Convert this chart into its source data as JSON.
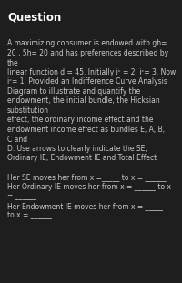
{
  "title": "Question",
  "background_color": "#1e1e1e",
  "text_color": "#c8c8c8",
  "title_color": "#ffffff",
  "title_fontsize": 8.5,
  "body_fontsize": 5.5,
  "figwidth": 2.0,
  "figheight": 3.11,
  "dpi": 100,
  "body_lines": [
    "",
    "A maximizing consumer is endowed with gh=",
    "20 , 5h= 20 and has preferences described by",
    "the",
    "linear function d = 45. Initially iᶜ = 2, iᶜ= 3. Now",
    "iᶜ= 1. Provided an Indifference Curve Analysis",
    "Diagram to illustrate and quantify the",
    "endowment, the initial bundle, the Hicksian",
    "substitution",
    "effect, the ordinary income effect and the",
    "endowment income effect as bundles E, A, B,",
    "C and",
    "D. Use arrows to clearly indicate the SE,",
    "Ordinary IE, Endowment IE and Total Effect",
    "",
    "Her SE moves her from x =      to x =       ",
    "Her Ordinary IE moves her from x =        to x",
    "=       ",
    "Her Endowment IE moves her from x =      ",
    "to x =       "
  ],
  "underline_lines": [
    "Her SE moves her from x =_____ to x = ______",
    "Her Ordinary IE moves her from x = ______ to x",
    "= ______",
    "Her Endowment IE moves her from x = _____",
    "to x = ______"
  ]
}
